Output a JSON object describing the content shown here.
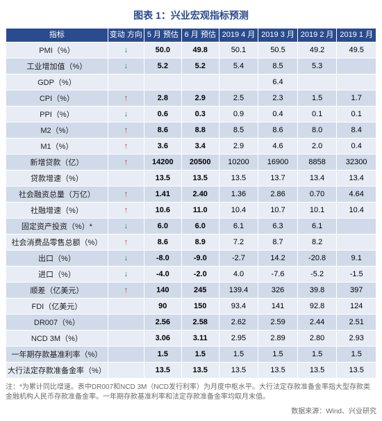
{
  "title": "图表 1：兴业宏观指标预测",
  "columns": {
    "indicator": "指标",
    "direction": "变动\n方向",
    "may_est": "5 月\n预估",
    "jun_est": "6 月\n预估",
    "apr19": "2019\n4 月",
    "mar19": "2019\n3 月",
    "feb19": "2019\n2 月",
    "jan19": "2019\n1 月"
  },
  "arrows": {
    "up": "↑",
    "down": "↓"
  },
  "rows": [
    {
      "ind": "PMI（%）",
      "dir": "down",
      "may": "50.0",
      "jun": "49.8",
      "apr": "50.1",
      "mar": "50.5",
      "feb": "49.2",
      "jan": "49.5"
    },
    {
      "ind": "工业增加值（%）",
      "dir": "down",
      "may": "5.2",
      "jun": "5.2",
      "apr": "5.4",
      "mar": "8.5",
      "feb": "5.3",
      "jan": ""
    },
    {
      "ind": "GDP（%）",
      "dir": "",
      "may": "",
      "jun": "",
      "apr": "",
      "mar": "6.4",
      "feb": "",
      "jan": ""
    },
    {
      "ind": "CPI（%）",
      "dir": "up",
      "may": "2.8",
      "jun": "2.9",
      "apr": "2.5",
      "mar": "2.3",
      "feb": "1.5",
      "jan": "1.7"
    },
    {
      "ind": "PPI（%）",
      "dir": "down",
      "may": "0.6",
      "jun": "0.3",
      "apr": "0.9",
      "mar": "0.4",
      "feb": "0.1",
      "jan": "0.1"
    },
    {
      "ind": "M2（%）",
      "dir": "up",
      "may": "8.6",
      "jun": "8.8",
      "apr": "8.5",
      "mar": "8.6",
      "feb": "8.0",
      "jan": "8.4"
    },
    {
      "ind": "M1（%）",
      "dir": "up",
      "may": "3.6",
      "jun": "3.4",
      "apr": "2.9",
      "mar": "4.6",
      "feb": "2.0",
      "jan": "0.4"
    },
    {
      "ind": "新增贷款（亿）",
      "dir": "up",
      "may": "14200",
      "jun": "20500",
      "apr": "10200",
      "mar": "16900",
      "feb": "8858",
      "jan": "32300"
    },
    {
      "ind": "贷款增速（%）",
      "dir": "",
      "may": "13.5",
      "jun": "13.5",
      "apr": "13.5",
      "mar": "13.7",
      "feb": "13.4",
      "jan": "13.4"
    },
    {
      "ind": "社会融资总量（万亿）",
      "dir": "up",
      "may": "1.41",
      "jun": "2.40",
      "apr": "1.36",
      "mar": "2.86",
      "feb": "0.70",
      "jan": "4.64"
    },
    {
      "ind": "社融增速（%）",
      "dir": "up",
      "may": "10.6",
      "jun": "11.0",
      "apr": "10.4",
      "mar": "10.7",
      "feb": "10.1",
      "jan": "10.4"
    },
    {
      "ind": "固定资产投资（%）*",
      "dir": "down",
      "may": "6.0",
      "jun": "6.0",
      "apr": "6.1",
      "mar": "6.3",
      "feb": "6.1",
      "jan": ""
    },
    {
      "ind": "社会消费品零售总额（%）",
      "dir": "up",
      "may": "8.6",
      "jun": "8.9",
      "apr": "7.2",
      "mar": "8.7",
      "feb": "8.2",
      "jan": ""
    },
    {
      "ind": "出口（%）",
      "dir": "down",
      "may": "-8.0",
      "jun": "-9.0",
      "apr": "-2.7",
      "mar": "14.2",
      "feb": "-20.8",
      "jan": "9.1"
    },
    {
      "ind": "进口（%）",
      "dir": "down",
      "may": "-4.0",
      "jun": "-2.0",
      "apr": "4.0",
      "mar": "-7.6",
      "feb": "-5.2",
      "jan": "-1.5"
    },
    {
      "ind": "顺差（亿美元）",
      "dir": "up",
      "may": "140",
      "jun": "245",
      "apr": "139.4",
      "mar": "326",
      "feb": "39.8",
      "jan": "397"
    },
    {
      "ind": "FDI（亿美元）",
      "dir": "",
      "may": "90",
      "jun": "150",
      "apr": "93.4",
      "mar": "141",
      "feb": "92.8",
      "jan": "124"
    },
    {
      "ind": "DR007（%）",
      "dir": "",
      "may": "2.56",
      "jun": "2.58",
      "apr": "2.62",
      "mar": "2.59",
      "feb": "2.44",
      "jan": "2.51"
    },
    {
      "ind": "NCD 3M（%）",
      "dir": "",
      "may": "3.06",
      "jun": "3.11",
      "apr": "2.95",
      "mar": "2.89",
      "feb": "2.80",
      "jan": "2.93"
    },
    {
      "ind": "一年期存款基准利率（%）",
      "dir": "",
      "may": "1.5",
      "jun": "1.5",
      "apr": "1.5",
      "mar": "1.5",
      "feb": "1.5",
      "jan": "1.5"
    },
    {
      "ind": "大行法定存款准备金率（%）",
      "dir": "",
      "may": "13.5",
      "jun": "13.5",
      "apr": "13.5",
      "mar": "13.5",
      "feb": "13.5",
      "jan": "13.5"
    }
  ],
  "footnote": "注：*为累计同比增速。表中DR007和NCD 3M（NCD发行利率）为月度中枢水平。大行法定存款准备金率指大型存款类金融机构人民币存款准备金率。一年期存款基准利率和法定存款准备金率均取月末值。",
  "source": "数据来源：Wind、兴业研究",
  "style": {
    "header_bg": "#2a4b8d",
    "header_fg": "#ffffff",
    "row_odd_bg": "#e7ecf5",
    "row_even_bg": "#d0dae9",
    "title_color": "#2a4b8d",
    "footnote_color": "#6b6b6b",
    "up_color": "#c0392b",
    "down_color": "#1e8449",
    "font_size_body": 11,
    "font_size_title": 14,
    "type": "table"
  }
}
